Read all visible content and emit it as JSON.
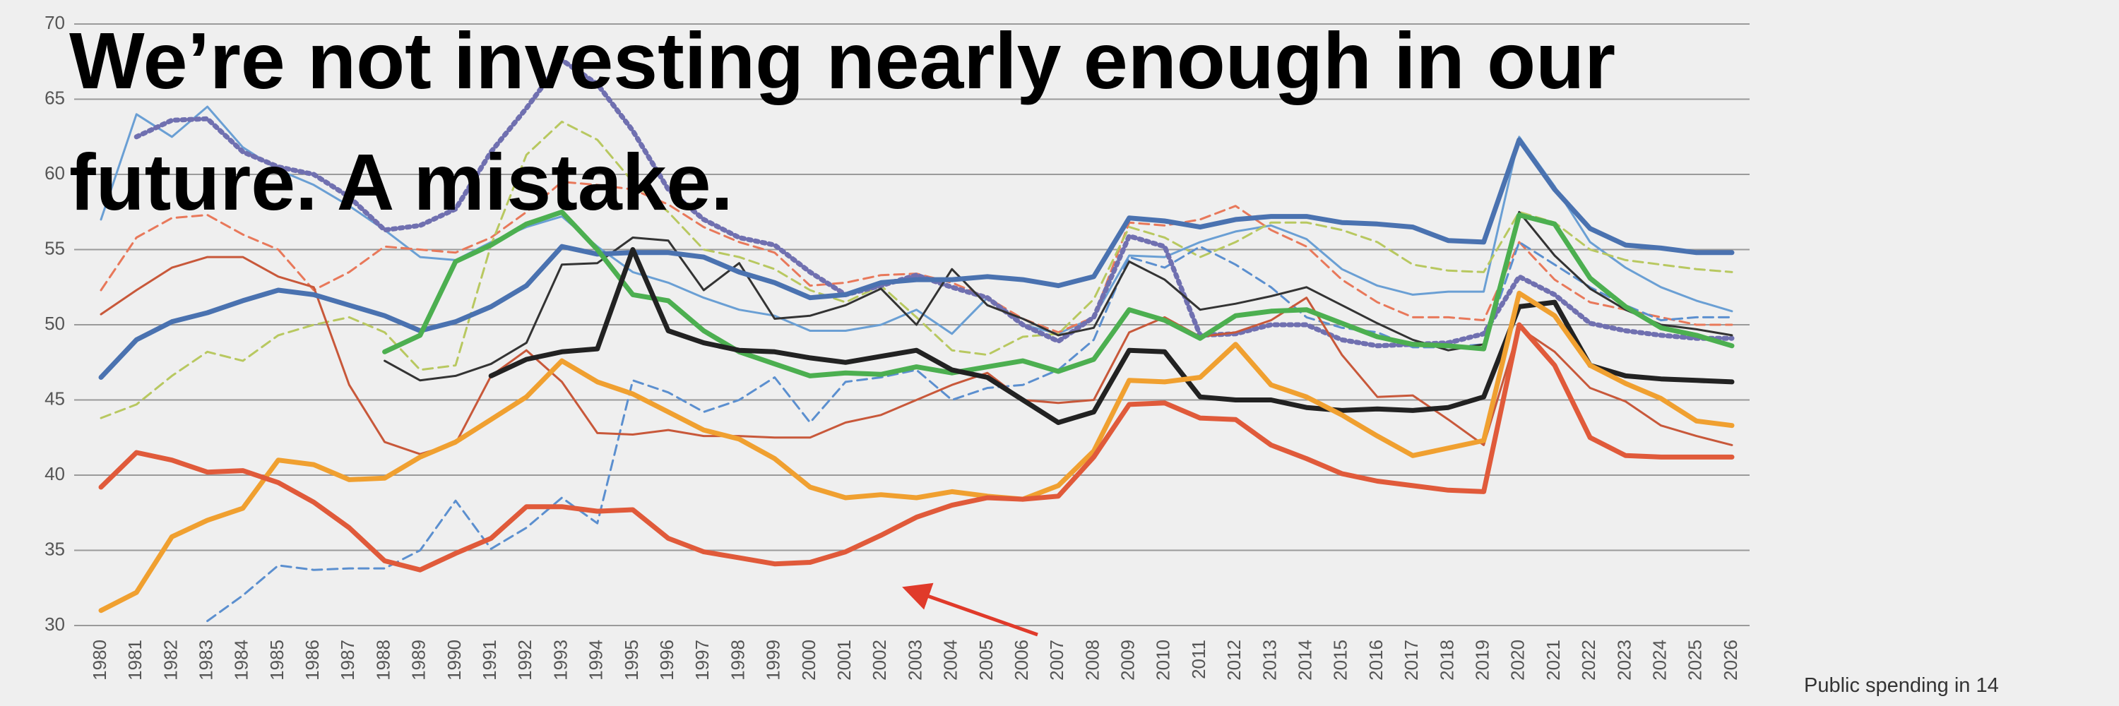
{
  "chart_data": {
    "type": "line",
    "title": "We’re not investing nearly enough in our future. A mistake.",
    "caption": "Public spending in 14",
    "categories": [
      "1980",
      "1981",
      "1982",
      "1983",
      "1984",
      "1985",
      "1986",
      "1987",
      "1988",
      "1989",
      "1990",
      "1991",
      "1992",
      "1993",
      "1994",
      "1995",
      "1996",
      "1997",
      "1998",
      "1999",
      "2000",
      "2001",
      "2002",
      "2003",
      "2004",
      "2005",
      "2006",
      "2007",
      "2008",
      "2009",
      "2010",
      "2011",
      "2012",
      "2013",
      "2014",
      "2015",
      "2016",
      "2017",
      "2018",
      "2019",
      "2020",
      "2021",
      "2022",
      "2023",
      "2024",
      "2025",
      "2026"
    ],
    "ylim": [
      30,
      70
    ],
    "yticks": [
      30,
      35,
      40,
      45,
      50,
      55,
      60,
      65,
      70
    ],
    "grid": true,
    "series": [
      {
        "color": "#6a9fd4",
        "style": "solid",
        "width": "thin",
        "values": [
          57,
          64,
          62.5,
          64.5,
          61.8,
          60.3,
          59.3,
          57.9,
          56.3,
          54.5,
          54.3,
          55.5,
          56.5,
          57.2,
          55.2,
          53.5,
          52.8,
          51.8,
          51,
          50.6,
          49.6,
          49.6,
          50,
          51,
          49.4,
          51.8,
          50,
          49.4,
          50.5,
          54.6,
          54.5,
          55.5,
          56.2,
          56.6,
          55.7,
          53.7,
          52.6,
          52,
          52.2,
          52.2,
          62.5,
          59.2,
          55.5,
          53.8,
          52.5,
          51.6,
          50.9
        ]
      },
      {
        "color": "#e8785a",
        "style": "dashed",
        "width": "thin",
        "values": [
          52.3,
          55.8,
          57.1,
          57.3,
          56,
          55,
          52.3,
          53.5,
          55.2,
          55,
          54.8,
          55.8,
          57.5,
          59.5,
          59.3,
          59,
          58,
          56.5,
          55.5,
          54.8,
          52.6,
          52.8,
          53.3,
          53.4,
          52.8,
          51.8,
          50.4,
          49.5,
          50.5,
          56.8,
          56.6,
          57,
          57.9,
          56.3,
          55.2,
          53,
          51.5,
          50.5,
          50.5,
          50.3,
          55.5,
          53,
          51.5,
          51,
          50.5,
          50,
          50
        ]
      },
      {
        "color": "#b8c860",
        "style": "dashed",
        "width": "thin",
        "values": [
          43.8,
          44.7,
          46.6,
          48.2,
          47.6,
          49.3,
          50,
          50.5,
          49.5,
          47,
          47.3,
          55.3,
          61.3,
          63.5,
          62.3,
          59.5,
          57.5,
          55,
          54.5,
          53.7,
          52.3,
          51.5,
          52.6,
          50.5,
          48.3,
          48,
          49.2,
          49.4,
          51.7,
          56.5,
          55.8,
          54.5,
          55.5,
          56.8,
          56.8,
          56.3,
          55.5,
          54,
          53.6,
          53.5,
          57.5,
          56.8,
          55,
          54.3,
          54,
          53.7,
          53.5
        ]
      },
      {
        "color": "#5b8fcf",
        "style": "dashed",
        "width": "thin",
        "values": [
          null,
          null,
          null,
          30.3,
          32,
          34,
          33.7,
          33.8,
          33.8,
          35,
          38.3,
          35.1,
          36.5,
          38.5,
          36.8,
          46.3,
          45.5,
          44.2,
          45,
          46.5,
          43.5,
          46.2,
          46.5,
          47,
          45,
          45.8,
          46,
          47,
          49,
          54.5,
          53.8,
          55.2,
          54,
          52.5,
          50.5,
          49.8,
          49.5,
          48.5,
          48.5,
          48.7,
          55.5,
          54,
          52.5,
          51.3,
          50.3,
          50.5,
          50.5
        ]
      },
      {
        "color": "#7070b0",
        "style": "dotted",
        "width": "thick",
        "values": [
          null,
          62.5,
          63.6,
          63.7,
          61.5,
          60.5,
          60,
          58.5,
          56.3,
          56.6,
          57.7,
          61.5,
          64.4,
          67.6,
          66,
          62.9,
          59,
          57,
          55.8,
          55.3,
          53.5,
          52,
          52.6,
          53.3,
          52.5,
          51.8,
          50,
          48.9,
          50.5,
          55.9,
          55.2,
          49.3,
          49.4,
          50,
          50,
          49,
          48.6,
          48.7,
          48.8,
          49.4,
          53.2,
          52,
          50.1,
          49.6,
          49.3,
          49.1,
          49.1
        ]
      },
      {
        "color": "#c8583a",
        "style": "solid",
        "width": "thin",
        "values": [
          50.7,
          52.3,
          53.8,
          54.5,
          54.5,
          53.2,
          52.5,
          46,
          42.2,
          41.4,
          42.1,
          46.6,
          48.3,
          46.2,
          42.8,
          42.7,
          43,
          42.6,
          42.6,
          42.5,
          42.5,
          43.5,
          44,
          45,
          46,
          46.8,
          45,
          44.8,
          45,
          49.5,
          50.5,
          49.2,
          49.5,
          50.3,
          51.8,
          48,
          45.2,
          45.3,
          43.7,
          42,
          49.8,
          48.2,
          45.8,
          44.9,
          43.3,
          42.6,
          42
        ]
      },
      {
        "color": "#333333",
        "style": "solid",
        "width": "thin",
        "values": [
          null,
          null,
          null,
          null,
          null,
          null,
          null,
          null,
          47.6,
          46.3,
          46.6,
          47.4,
          48.8,
          54,
          54.1,
          55.8,
          55.6,
          52.3,
          54.1,
          50.4,
          50.6,
          51.3,
          52.4,
          50,
          53.7,
          51.3,
          50.4,
          49.3,
          49.8,
          54.2,
          53,
          51,
          51.4,
          51.9,
          52.5,
          51.3,
          50.1,
          49,
          48.3,
          48.7,
          57.5,
          54.6,
          52.4,
          51,
          50,
          49.7,
          49.3
        ]
      },
      {
        "color": "#4a72b0",
        "style": "solid",
        "width": "thick",
        "values": [
          46.5,
          49,
          50.2,
          50.8,
          51.6,
          52.3,
          52,
          51.3,
          50.6,
          49.6,
          50.2,
          51.2,
          52.6,
          55.2,
          54.7,
          54.8,
          54.8,
          54.5,
          53.5,
          52.8,
          51.8,
          52,
          52.8,
          53,
          53,
          53.2,
          53,
          52.6,
          53.2,
          57.1,
          56.9,
          56.5,
          57,
          57.2,
          57.2,
          56.8,
          56.7,
          56.5,
          55.6,
          55.5,
          62.3,
          59,
          56.4,
          55.3,
          55.1,
          54.8,
          54.8
        ]
      },
      {
        "color": "#4caf50",
        "style": "solid",
        "width": "thick",
        "values": [
          null,
          null,
          null,
          null,
          null,
          null,
          null,
          null,
          48.2,
          49.3,
          54.2,
          55.3,
          56.7,
          57.5,
          55,
          52,
          51.6,
          49.6,
          48.2,
          47.4,
          46.6,
          46.8,
          46.7,
          47.2,
          46.8,
          47.2,
          47.6,
          46.9,
          47.7,
          51,
          50.3,
          49.1,
          50.6,
          50.9,
          51,
          50.1,
          49.2,
          48.7,
          48.6,
          48.4,
          57.3,
          56.7,
          53.1,
          51.2,
          49.8,
          49.3,
          48.6
        ]
      },
      {
        "color": "#222222",
        "style": "solid",
        "width": "thick",
        "values": [
          null,
          null,
          null,
          null,
          null,
          null,
          null,
          null,
          null,
          null,
          null,
          46.6,
          47.7,
          48.2,
          48.4,
          55,
          49.6,
          48.8,
          48.3,
          48.2,
          47.8,
          47.5,
          47.9,
          48.3,
          47,
          46.5,
          45,
          43.5,
          44.2,
          48.3,
          48.2,
          45.2,
          45,
          45,
          44.5,
          44.3,
          44.4,
          44.3,
          44.5,
          45.2,
          51.2,
          51.5,
          47.3,
          46.6,
          46.4,
          46.3,
          46.2
        ]
      },
      {
        "color": "#f0a030",
        "style": "solid",
        "width": "thick",
        "values": [
          31,
          32.2,
          35.9,
          37,
          37.8,
          41,
          40.7,
          39.7,
          39.8,
          41.2,
          42.2,
          43.7,
          45.2,
          47.6,
          46.2,
          45.4,
          44.2,
          43,
          42.4,
          41.1,
          39.2,
          38.5,
          38.7,
          38.5,
          38.9,
          38.6,
          38.4,
          39.3,
          41.6,
          46.3,
          46.2,
          46.5,
          48.7,
          46,
          45.2,
          44,
          42.6,
          41.3,
          41.8,
          42.3,
          52.1,
          50.6,
          47.3,
          46.1,
          45.1,
          43.6,
          43.3
        ]
      },
      {
        "color": "#e05a3a",
        "style": "solid",
        "width": "thick",
        "values": [
          39.2,
          41.5,
          41,
          40.2,
          40.3,
          39.5,
          38.2,
          36.5,
          34.3,
          33.7,
          34.8,
          35.8,
          37.9,
          37.9,
          37.6,
          37.7,
          35.8,
          34.9,
          34.5,
          34.1,
          34.2,
          34.9,
          36,
          37.2,
          38,
          38.5,
          38.4,
          38.6,
          41.2,
          44.7,
          44.8,
          43.8,
          43.7,
          42,
          41.1,
          40.1,
          39.6,
          39.3,
          39,
          38.9,
          50,
          47.3,
          42.5,
          41.3,
          41.2,
          41.2,
          41.2
        ]
      }
    ]
  }
}
